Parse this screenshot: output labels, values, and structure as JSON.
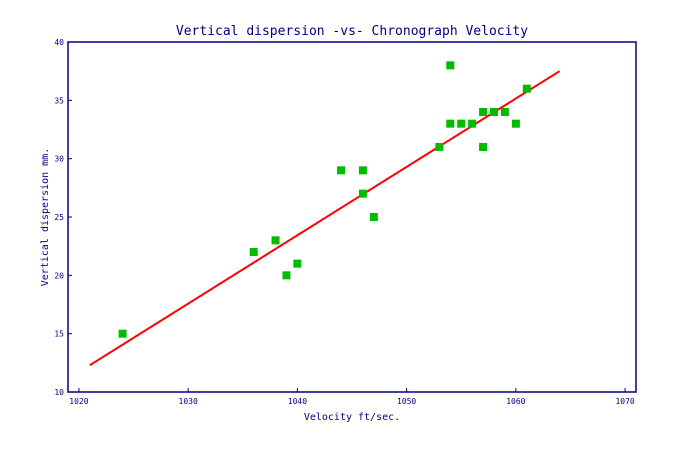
{
  "chart_data": {
    "type": "scatter",
    "title": "Vertical dispersion -vs- Chronograph Velocity",
    "xlabel": "Velocity ft/sec.",
    "ylabel": "Vertical dispersion mm.",
    "xlim": [
      1019,
      1071
    ],
    "ylim": [
      10,
      40
    ],
    "xticks": [
      1020,
      1030,
      1040,
      1050,
      1060,
      1070
    ],
    "yticks": [
      10,
      15,
      20,
      25,
      30,
      35,
      40
    ],
    "grid": false,
    "points": [
      [
        1024,
        15
      ],
      [
        1036,
        22
      ],
      [
        1038,
        23
      ],
      [
        1039,
        20
      ],
      [
        1040,
        21
      ],
      [
        1044,
        29
      ],
      [
        1046,
        29
      ],
      [
        1046,
        27
      ],
      [
        1047,
        25
      ],
      [
        1053,
        31
      ],
      [
        1054,
        38
      ],
      [
        1054,
        33
      ],
      [
        1055,
        33
      ],
      [
        1056,
        33
      ],
      [
        1057,
        34
      ],
      [
        1057,
        31
      ],
      [
        1058,
        34
      ],
      [
        1059,
        34
      ],
      [
        1060,
        33
      ],
      [
        1061,
        36
      ]
    ],
    "fit_line": [
      [
        1021,
        12.3
      ],
      [
        1064,
        37.5
      ]
    ],
    "colors": {
      "points": "#00bb00",
      "fit": "#ff0000",
      "axes": "#000080"
    }
  }
}
